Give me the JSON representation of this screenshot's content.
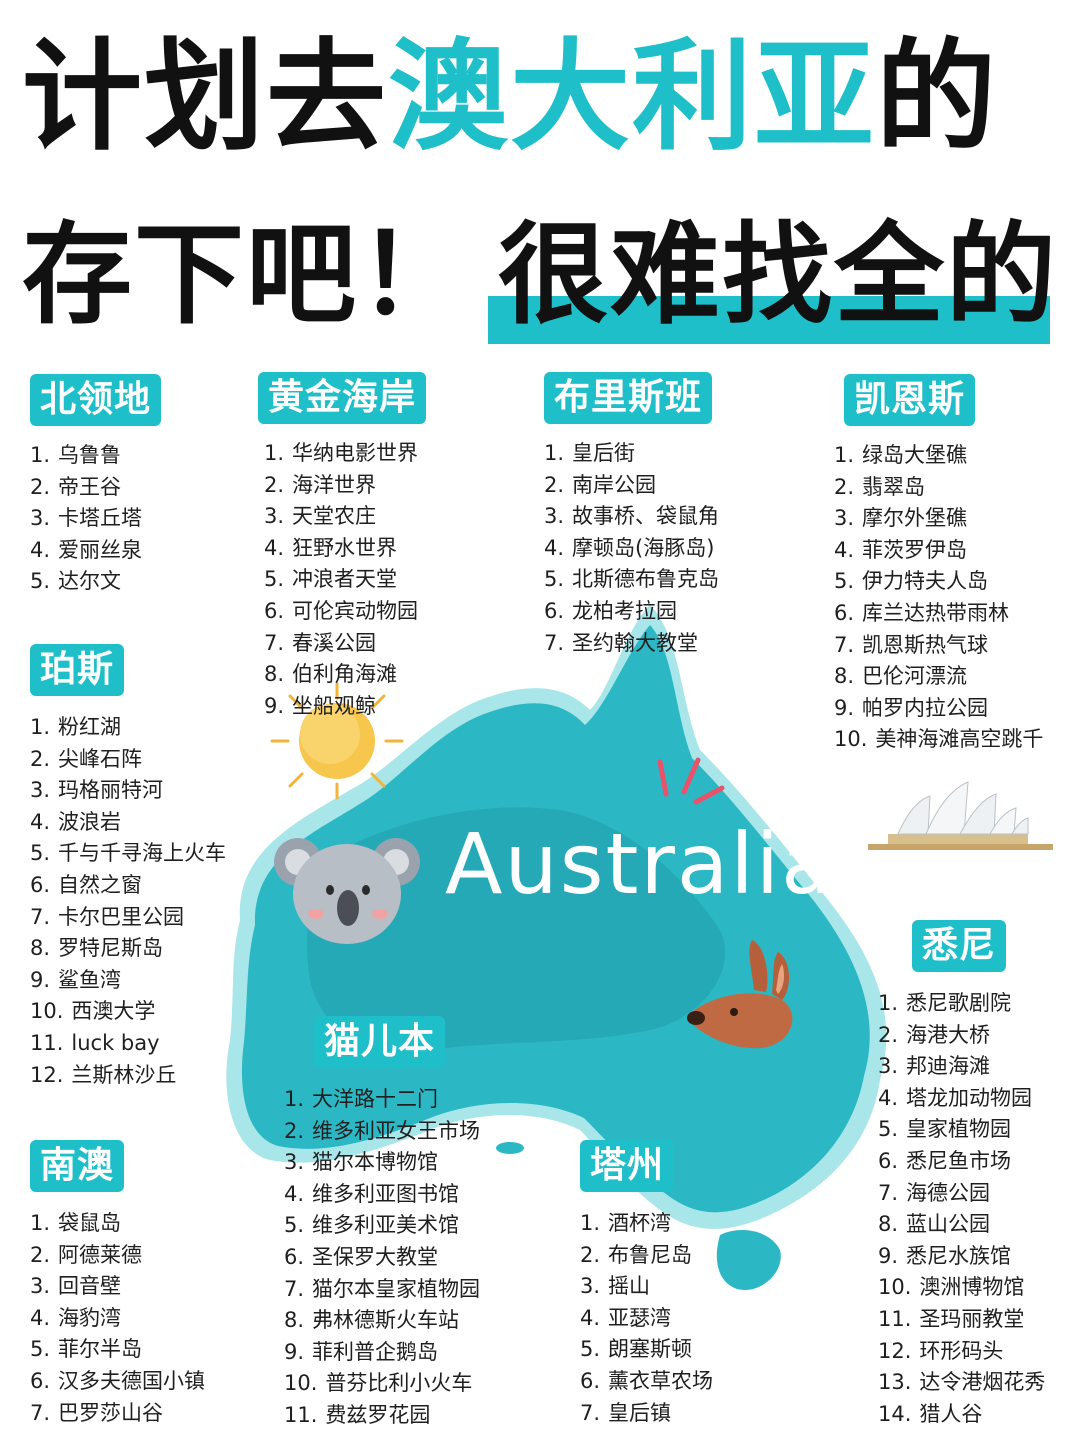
{
  "accent": "#1fbfca",
  "title": {
    "line1": [
      {
        "text": "计划去",
        "style": "black"
      },
      {
        "text": "澳大利亚",
        "style": "teal"
      },
      {
        "text": "的",
        "style": "black"
      }
    ],
    "line2": [
      {
        "text": "存下吧！",
        "style": "black"
      },
      {
        "text": "很难找全的",
        "style": "black"
      }
    ]
  },
  "map_label": "Australia",
  "icons": [
    "australia-map-illustration",
    "sun-icon",
    "koala-icon",
    "kangaroo-icon",
    "sydney-opera-house-icon",
    "sparkle-lines-icon"
  ],
  "regions": {
    "northern_territory": {
      "name": "北领地",
      "items": [
        {
          "n": "1.",
          "t": "乌鲁鲁"
        },
        {
          "n": "2.",
          "t": "帝王谷"
        },
        {
          "n": "3.",
          "t": "卡塔丘塔"
        },
        {
          "n": "4.",
          "t": "爱丽丝泉"
        },
        {
          "n": "5.",
          "t": "达尔文"
        }
      ]
    },
    "gold_coast": {
      "name": "黄金海岸",
      "items": [
        {
          "n": "1.",
          "t": "华纳电影世界"
        },
        {
          "n": "2.",
          "t": "海洋世界"
        },
        {
          "n": "3.",
          "t": "天堂农庄"
        },
        {
          "n": "4.",
          "t": "狂野水世界"
        },
        {
          "n": "5.",
          "t": "冲浪者天堂"
        },
        {
          "n": "6.",
          "t": "可伦宾动物园"
        },
        {
          "n": "7.",
          "t": "春溪公园"
        },
        {
          "n": "8.",
          "t": "伯利角海滩"
        },
        {
          "n": "9.",
          "t": "坐船观鲸"
        }
      ]
    },
    "brisbane": {
      "name": "布里斯班",
      "items": [
        {
          "n": "1.",
          "t": "皇后街"
        },
        {
          "n": "2.",
          "t": "南岸公园"
        },
        {
          "n": "3.",
          "t": "故事桥、袋鼠角"
        },
        {
          "n": "4.",
          "t": "摩顿岛(海豚岛)"
        },
        {
          "n": "5.",
          "t": "北斯德布鲁克岛"
        },
        {
          "n": "6.",
          "t": "龙柏考拉园"
        },
        {
          "n": "7.",
          "t": "圣约翰大教堂"
        }
      ]
    },
    "cairns": {
      "name": "凯恩斯",
      "items": [
        {
          "n": "1.",
          "t": "绿岛大堡礁"
        },
        {
          "n": "2.",
          "t": "翡翠岛"
        },
        {
          "n": "3.",
          "t": "摩尔外堡礁"
        },
        {
          "n": "4.",
          "t": "菲茨罗伊岛"
        },
        {
          "n": "5.",
          "t": "伊力特夫人岛"
        },
        {
          "n": "6.",
          "t": "库兰达热带雨林"
        },
        {
          "n": "7.",
          "t": "凯恩斯热气球"
        },
        {
          "n": "8.",
          "t": "巴伦河漂流"
        },
        {
          "n": "9.",
          "t": "帕罗内拉公园"
        },
        {
          "n": "10.",
          "t": "美神海滩高空跳千"
        }
      ]
    },
    "perth": {
      "name": "珀斯",
      "items": [
        {
          "n": "1.",
          "t": "粉红湖"
        },
        {
          "n": "2.",
          "t": "尖峰石阵"
        },
        {
          "n": "3.",
          "t": "玛格丽特河"
        },
        {
          "n": "4.",
          "t": "波浪岩"
        },
        {
          "n": "5.",
          "t": "千与千寻海上火车"
        },
        {
          "n": "6.",
          "t": "自然之窗"
        },
        {
          "n": "7.",
          "t": "卡尔巴里公园"
        },
        {
          "n": "8.",
          "t": "罗特尼斯岛"
        },
        {
          "n": "9.",
          "t": "鲨鱼湾"
        },
        {
          "n": "10.",
          "t": "西澳大学"
        },
        {
          "n": "11.",
          "t": "luck bay"
        },
        {
          "n": "12.",
          "t": "兰斯林沙丘"
        }
      ]
    },
    "sydney": {
      "name": "悉尼",
      "items": [
        {
          "n": "1.",
          "t": "悉尼歌剧院"
        },
        {
          "n": "2.",
          "t": "海港大桥"
        },
        {
          "n": "3.",
          "t": "邦迪海滩"
        },
        {
          "n": "4.",
          "t": "塔龙加动物园"
        },
        {
          "n": "5.",
          "t": "皇家植物园"
        },
        {
          "n": "6.",
          "t": "悉尼鱼市场"
        },
        {
          "n": "7.",
          "t": "海德公园"
        },
        {
          "n": "8.",
          "t": "蓝山公园"
        },
        {
          "n": "9.",
          "t": "悉尼水族馆"
        },
        {
          "n": "10.",
          "t": "澳洲博物馆"
        },
        {
          "n": "11.",
          "t": "圣玛丽教堂"
        },
        {
          "n": "12.",
          "t": "环形码头"
        },
        {
          "n": "13.",
          "t": "达令港烟花秀"
        },
        {
          "n": "14.",
          "t": "猎人谷"
        }
      ]
    },
    "melbourne": {
      "name": "猫儿本",
      "items": [
        {
          "n": "1.",
          "t": "大洋路十二门"
        },
        {
          "n": "2.",
          "t": "维多利亚女王市场"
        },
        {
          "n": "3.",
          "t": "猫尔本博物馆"
        },
        {
          "n": "4.",
          "t": "维多利亚图书馆"
        },
        {
          "n": "5.",
          "t": "维多利亚美术馆"
        },
        {
          "n": "6.",
          "t": "圣保罗大教堂"
        },
        {
          "n": "7.",
          "t": "猫尔本皇家植物园"
        },
        {
          "n": "8.",
          "t": "弗林德斯火车站"
        },
        {
          "n": "9.",
          "t": "菲利普企鹅岛"
        },
        {
          "n": "10.",
          "t": "普芬比利小火车"
        },
        {
          "n": "11.",
          "t": "费兹罗花园"
        }
      ]
    },
    "south_australia": {
      "name": "南澳",
      "items": [
        {
          "n": "1.",
          "t": "袋鼠岛"
        },
        {
          "n": "2.",
          "t": "阿德莱德"
        },
        {
          "n": "3.",
          "t": "回音壁"
        },
        {
          "n": "4.",
          "t": "海豹湾"
        },
        {
          "n": "5.",
          "t": "菲尔半岛"
        },
        {
          "n": "6.",
          "t": "汉多夫德国小镇"
        },
        {
          "n": "7.",
          "t": "巴罗莎山谷"
        }
      ]
    },
    "tasmania": {
      "name": "塔州",
      "items": [
        {
          "n": "1.",
          "t": "酒杯湾"
        },
        {
          "n": "2.",
          "t": "布鲁尼岛"
        },
        {
          "n": "3.",
          "t": "摇山"
        },
        {
          "n": "4.",
          "t": "亚瑟湾"
        },
        {
          "n": "5.",
          "t": "朗塞斯顿"
        },
        {
          "n": "6.",
          "t": "薰衣草农场"
        },
        {
          "n": "7.",
          "t": "皇后镇"
        }
      ]
    }
  }
}
